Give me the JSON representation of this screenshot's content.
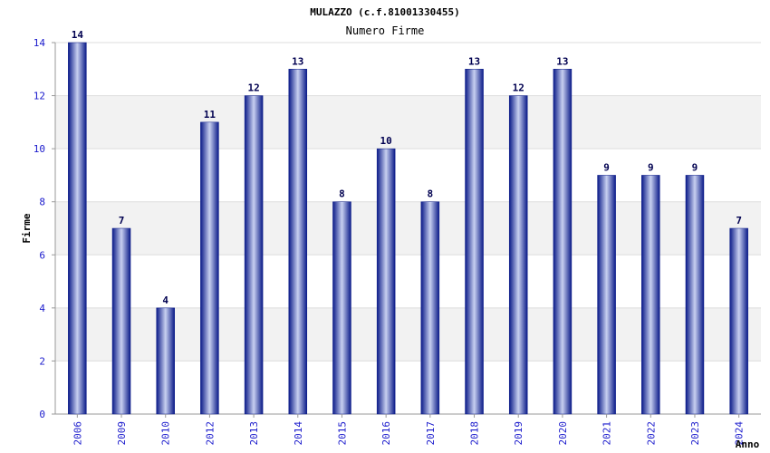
{
  "chart_data": {
    "type": "bar",
    "title": "MULAZZO (c.f.81001330455)",
    "subtitle": "Numero Firme",
    "xlabel": "Anno",
    "ylabel": "Firme",
    "categories": [
      "2006",
      "2009",
      "2010",
      "2012",
      "2013",
      "2014",
      "2015",
      "2016",
      "2017",
      "2018",
      "2019",
      "2020",
      "2021",
      "2022",
      "2023",
      "2024"
    ],
    "values": [
      14,
      7,
      4,
      11,
      12,
      13,
      8,
      10,
      8,
      13,
      12,
      13,
      9,
      9,
      9,
      7
    ],
    "ylim": [
      0,
      14
    ],
    "yticks": [
      0,
      2,
      4,
      6,
      8,
      10,
      12,
      14
    ],
    "grid": true,
    "bar_color": "#1a2a9a",
    "bar_highlight": "#c8d0f0",
    "tick_color": "#1a1acc",
    "band_color": "#f2f2f2"
  }
}
